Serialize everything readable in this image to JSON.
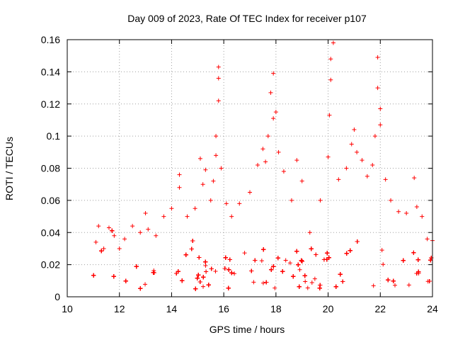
{
  "chart_data": {
    "type": "scatter",
    "title": "Day 009 of 2023, Rate Of TEC Index for receiver p107",
    "xlabel": "GPS time / hours",
    "ylabel": "ROTI / TECUs",
    "xlim": [
      10,
      24
    ],
    "ylim": [
      0,
      0.16
    ],
    "xticks": [
      10,
      12,
      14,
      16,
      18,
      20,
      22,
      24
    ],
    "xtick_labels": [
      "10",
      "12",
      "14",
      "16",
      "18",
      "20",
      "22",
      "24"
    ],
    "yticks": [
      0,
      0.02,
      0.04,
      0.06,
      0.08,
      0.1,
      0.12,
      0.14,
      0.16
    ],
    "ytick_labels": [
      "0",
      "0.02",
      "0.04",
      "0.06",
      "0.08",
      "0.1",
      "0.12",
      "0.14",
      "0.16"
    ],
    "grid": true,
    "marker": "+",
    "color": "#ff0000",
    "series": [
      {
        "name": "ROTI",
        "x_range": [
          11.0,
          24.0
        ],
        "typical_band": [
          0.005,
          0.03
        ],
        "x": [
          11.1,
          11.2,
          11.4,
          11.6,
          11.8,
          12.0,
          12.2,
          12.5,
          12.8,
          13.0,
          13.1,
          13.4,
          13.7,
          14.0,
          14.3,
          14.3,
          14.6,
          14.9,
          15.1,
          15.2,
          15.3,
          15.5,
          15.6,
          15.7,
          15.7,
          15.8,
          15.8,
          15.8,
          15.9,
          16.1,
          16.3,
          16.6,
          17.0,
          17.3,
          17.5,
          17.6,
          17.7,
          17.8,
          17.9,
          17.9,
          18.0,
          18.1,
          18.3,
          18.6,
          18.8,
          19.0,
          19.3,
          19.7,
          20.0,
          20.05,
          20.1,
          20.1,
          20.2,
          20.4,
          20.7,
          20.9,
          21.0,
          21.1,
          21.3,
          21.5,
          21.7,
          21.8,
          21.9,
          21.9,
          22.0,
          22.0,
          22.2,
          22.4,
          22.7,
          23.0,
          23.3,
          23.4,
          23.6,
          23.8,
          24.0
        ],
        "y": [
          0.034,
          0.044,
          0.03,
          0.043,
          0.038,
          0.03,
          0.036,
          0.044,
          0.04,
          0.052,
          0.042,
          0.038,
          0.05,
          0.055,
          0.068,
          0.076,
          0.05,
          0.055,
          0.086,
          0.07,
          0.079,
          0.06,
          0.072,
          0.088,
          0.1,
          0.122,
          0.136,
          0.143,
          0.08,
          0.058,
          0.05,
          0.058,
          0.065,
          0.082,
          0.092,
          0.084,
          0.1,
          0.127,
          0.139,
          0.111,
          0.115,
          0.09,
          0.078,
          0.06,
          0.085,
          0.072,
          0.04,
          0.06,
          0.087,
          0.113,
          0.135,
          0.148,
          0.158,
          0.073,
          0.08,
          0.095,
          0.104,
          0.09,
          0.085,
          0.075,
          0.082,
          0.1,
          0.13,
          0.149,
          0.117,
          0.107,
          0.073,
          0.06,
          0.053,
          0.052,
          0.074,
          0.056,
          0.05,
          0.036,
          0.035
        ]
      }
    ]
  }
}
